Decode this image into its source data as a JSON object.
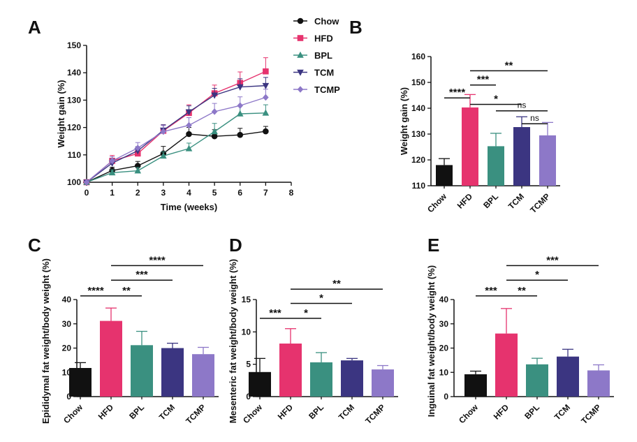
{
  "colors": {
    "Chow": "#111111",
    "HFD": "#e6336e",
    "BPL": "#3a9080",
    "TCM": "#3b3581",
    "TCMP": "#8d78c8"
  },
  "legend_placement": "top-right of panel A",
  "chart_data": [
    {
      "panel": "A",
      "type": "line",
      "xlabel": "Time (weeks)",
      "ylabel": "Weight gain (%)",
      "xlim": [
        0,
        8
      ],
      "ylim": [
        100,
        150
      ],
      "xticks": [
        "0",
        "1",
        "2",
        "3",
        "4",
        "5",
        "6",
        "7",
        "8"
      ],
      "yticks": [
        "100",
        "110",
        "120",
        "130",
        "140",
        "150"
      ],
      "x": [
        0,
        1,
        2,
        3,
        4,
        5,
        6,
        7
      ],
      "series": [
        {
          "name": "Chow",
          "marker": "circle",
          "values": [
            100,
            104.3,
            106.0,
            110.5,
            117.6,
            116.8,
            117.3,
            118.6
          ],
          "errors": [
            0,
            1.2,
            1.6,
            2.6,
            2.4,
            2.4,
            2.4,
            1.8
          ]
        },
        {
          "name": "HFD",
          "marker": "square",
          "values": [
            100,
            107.8,
            110.5,
            118.8,
            125.3,
            132.5,
            136.3,
            140.5
          ],
          "errors": [
            0,
            2.0,
            1.8,
            2.2,
            3.0,
            3.0,
            4.0,
            5.0
          ]
        },
        {
          "name": "BPL",
          "marker": "triangle-up",
          "values": [
            100,
            103.5,
            104.2,
            109.6,
            112.3,
            118.5,
            125.0,
            125.3
          ],
          "errors": [
            0,
            1.0,
            1.2,
            1.5,
            2.0,
            3.0,
            3.0,
            3.0
          ]
        },
        {
          "name": "TCM",
          "marker": "triangle-down",
          "values": [
            100,
            107.0,
            111.5,
            119.0,
            125.7,
            131.8,
            134.8,
            135.3
          ],
          "errors": [
            0,
            1.5,
            1.5,
            2.0,
            2.2,
            2.5,
            3.0,
            3.0
          ]
        },
        {
          "name": "TCMP",
          "marker": "diamond",
          "values": [
            100,
            107.8,
            112.5,
            118.5,
            120.8,
            125.8,
            128.0,
            131.0
          ],
          "errors": [
            0,
            1.5,
            2.0,
            2.2,
            2.8,
            3.0,
            3.2,
            3.0
          ]
        }
      ]
    },
    {
      "panel": "B",
      "type": "bar",
      "ylabel": "Weight gain (%)",
      "ylim": [
        110,
        160
      ],
      "yticks": [
        "110",
        "120",
        "130",
        "140",
        "150",
        "160"
      ],
      "categories": [
        "Chow",
        "HFD",
        "BPL",
        "TCM",
        "TCMP"
      ],
      "values": [
        118.0,
        140.3,
        125.3,
        132.7,
        129.5
      ],
      "errors": [
        2.5,
        5.0,
        5.0,
        4.0,
        5.0
      ],
      "significance": [
        {
          "from": 0,
          "to": 1,
          "label": "****",
          "y": 144.0
        },
        {
          "from": 1,
          "to": 2,
          "label": "***",
          "y": 149.0
        },
        {
          "from": 1,
          "to": 3,
          "label": "*",
          "y": 141.5
        },
        {
          "from": 2,
          "to": 4,
          "label": "ns",
          "y": 139.0
        },
        {
          "from": 3,
          "to": 4,
          "label": "ns",
          "y": 134.0
        },
        {
          "from": 1,
          "to": 4,
          "label": "**",
          "y": 154.5
        }
      ]
    },
    {
      "panel": "C",
      "type": "bar",
      "ylabel": "Epididymal fat weight/body weight (%)",
      "ylim": [
        0,
        40
      ],
      "yticks": [
        "0",
        "10",
        "20",
        "30",
        "40"
      ],
      "categories": [
        "Chow",
        "HFD",
        "BPL",
        "TCM",
        "TCMP"
      ],
      "values": [
        11.8,
        31.2,
        21.2,
        20.0,
        17.5
      ],
      "errors": [
        2.2,
        5.3,
        5.7,
        2.0,
        2.8
      ],
      "significance": [
        {
          "from": 0,
          "to": 1,
          "label": "****",
          "y": 41.5
        },
        {
          "from": 1,
          "to": 2,
          "label": "**",
          "y": 41.5
        },
        {
          "from": 1,
          "to": 3,
          "label": "***",
          "y": 48.0
        },
        {
          "from": 1,
          "to": 4,
          "label": "****",
          "y": 54.0
        }
      ]
    },
    {
      "panel": "D",
      "type": "bar",
      "ylabel": "Mesenteric fat weight/body weight (%)",
      "ylim": [
        0,
        15
      ],
      "yticks": [
        "0",
        "5",
        "10",
        "15"
      ],
      "categories": [
        "Chow",
        "HFD",
        "BPL",
        "TCM",
        "TCMP"
      ],
      "values": [
        3.8,
        8.2,
        5.3,
        5.6,
        4.2
      ],
      "errors": [
        2.1,
        2.3,
        1.5,
        0.3,
        0.6
      ],
      "significance": [
        {
          "from": 0,
          "to": 1,
          "label": "***",
          "y": 12.1
        },
        {
          "from": 1,
          "to": 2,
          "label": "*",
          "y": 12.1
        },
        {
          "from": 1,
          "to": 3,
          "label": "*",
          "y": 14.4
        },
        {
          "from": 1,
          "to": 4,
          "label": "**",
          "y": 16.6
        }
      ]
    },
    {
      "panel": "E",
      "type": "bar",
      "ylabel": "Inguinal fat weight/body weight (%)",
      "ylim": [
        0,
        40
      ],
      "yticks": [
        "0",
        "10",
        "20",
        "30",
        "40"
      ],
      "categories": [
        "Chow",
        "HFD",
        "BPL",
        "TCM",
        "TCMP"
      ],
      "values": [
        9.2,
        26.0,
        13.3,
        16.5,
        10.8
      ],
      "errors": [
        1.3,
        10.3,
        2.5,
        3.0,
        2.3
      ],
      "significance": [
        {
          "from": 0,
          "to": 1,
          "label": "***",
          "y": 41.5
        },
        {
          "from": 1,
          "to": 2,
          "label": "**",
          "y": 41.5
        },
        {
          "from": 1,
          "to": 3,
          "label": "*",
          "y": 48.0
        },
        {
          "from": 1,
          "to": 4,
          "label": "***",
          "y": 54.0
        }
      ]
    }
  ]
}
